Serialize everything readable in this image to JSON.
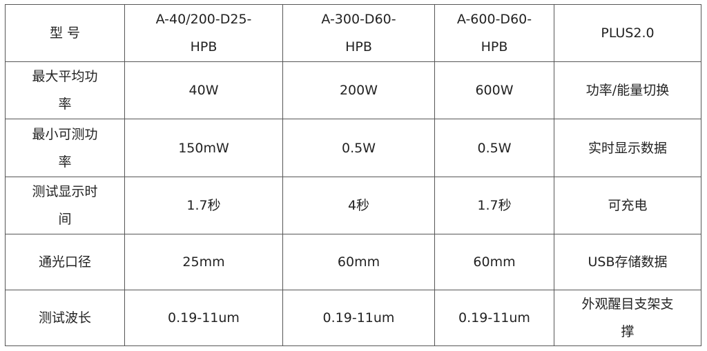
{
  "table": {
    "header": [
      "型  号",
      "A-40/200-D25-\nHPB",
      "A-300-D60-\nHPB",
      "A-600-D60-\nHPB",
      "PLUS2.0"
    ],
    "rows": [
      [
        "最大平均功\n率",
        "40W",
        "200W",
        "600W",
        "功率/能量切换"
      ],
      [
        "最小可测功\n率",
        "150mW",
        "0.5W",
        "0.5W",
        "实时显示数据"
      ],
      [
        "测试显示时\n间",
        "1.7秒",
        "4秒",
        "1.7秒",
        "可充电"
      ],
      [
        "通光口径",
        "25mm",
        "60mm",
        "60mm",
        "USB存储数据"
      ],
      [
        "测试波长",
        "0.19-11um",
        "0.19-11um",
        "0.19-11um",
        "外观醒目支架支\n撑"
      ]
    ]
  }
}
